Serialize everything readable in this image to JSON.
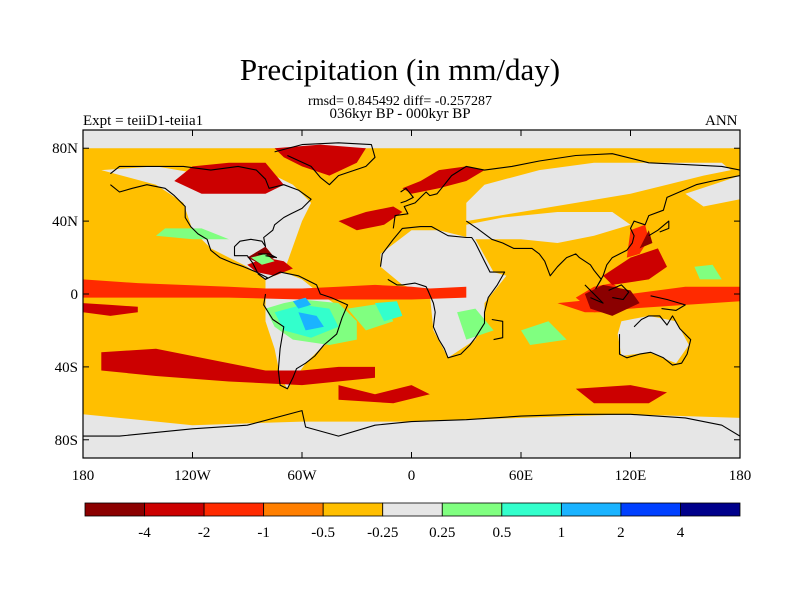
{
  "chart_data": {
    "type": "heatmap",
    "title": "Precipitation (in mm/day)",
    "stats_line": "rmsd= 0.845492 diff= -0.257287",
    "period_line": "036kyr BP - 000kyr BP",
    "left_label": "Expt = teiiD1-teiia1",
    "right_label": "ANN",
    "xlim": [
      -180,
      180
    ],
    "ylim": [
      -90,
      90
    ],
    "x_ticks": [
      {
        "value": -180,
        "label": "180"
      },
      {
        "value": -120,
        "label": "120W"
      },
      {
        "value": -60,
        "label": "60W"
      },
      {
        "value": 0,
        "label": "0"
      },
      {
        "value": 60,
        "label": "60E"
      },
      {
        "value": 120,
        "label": "120E"
      },
      {
        "value": 180,
        "label": "180"
      }
    ],
    "y_ticks": [
      {
        "value": 80,
        "label": "80N"
      },
      {
        "value": 40,
        "label": "40N"
      },
      {
        "value": 0,
        "label": "0"
      },
      {
        "value": -40,
        "label": "40S"
      },
      {
        "value": -80,
        "label": "80S"
      }
    ],
    "colorbar": {
      "boundaries": [
        "-4",
        "-2",
        "-1",
        "-0.5",
        "-0.25",
        "0.25",
        "0.5",
        "1",
        "2",
        "4"
      ],
      "colors": [
        "#8B0000",
        "#CC0000",
        "#FF2A00",
        "#FF7F00",
        "#FFBF00",
        "#E6E6E6",
        "#80FF80",
        "#33FFCC",
        "#1AB3FF",
        "#0040FF",
        "#00008B"
      ]
    },
    "regions": [
      {
        "level": 2,
        "pts": [
          [
            -180,
            8
          ],
          [
            -150,
            6
          ],
          [
            -100,
            4
          ],
          [
            -80,
            3
          ],
          [
            -60,
            3
          ],
          [
            -40,
            4
          ],
          [
            -20,
            5
          ],
          [
            0,
            4
          ],
          [
            10,
            3
          ],
          [
            30,
            4
          ],
          [
            30,
            -2
          ],
          [
            0,
            -3
          ],
          [
            -30,
            -3
          ],
          [
            -60,
            -3
          ],
          [
            -100,
            -2
          ],
          [
            -150,
            -2
          ],
          [
            -180,
            -2
          ]
        ]
      },
      {
        "level": 2,
        "pts": [
          [
            90,
            -2
          ],
          [
            100,
            4
          ],
          [
            110,
            6
          ],
          [
            115,
            2
          ],
          [
            120,
            0
          ],
          [
            135,
            2
          ],
          [
            150,
            4
          ],
          [
            180,
            4
          ],
          [
            180,
            -4
          ],
          [
            150,
            -6
          ],
          [
            120,
            -8
          ],
          [
            100,
            -10
          ]
        ]
      },
      {
        "level": 2,
        "pts": [
          [
            80,
            -5
          ],
          [
            100,
            -3
          ],
          [
            115,
            -6
          ],
          [
            110,
            -10
          ],
          [
            95,
            -10
          ]
        ]
      },
      {
        "level": 2,
        "pts": [
          [
            118,
            20
          ],
          [
            120,
            35
          ],
          [
            128,
            38
          ],
          [
            130,
            30
          ],
          [
            125,
            22
          ]
        ]
      },
      {
        "level": 1,
        "pts": [
          [
            -180,
            -5
          ],
          [
            -165,
            -6
          ],
          [
            -150,
            -7
          ],
          [
            -150,
            -10
          ],
          [
            -165,
            -12
          ],
          [
            -180,
            -10
          ]
        ]
      },
      {
        "level": 1,
        "pts": [
          [
            -90,
            16
          ],
          [
            -80,
            20
          ],
          [
            -70,
            18
          ],
          [
            -65,
            14
          ],
          [
            -75,
            10
          ],
          [
            -85,
            12
          ]
        ]
      },
      {
        "level": 1,
        "pts": [
          [
            -130,
            62
          ],
          [
            -120,
            70
          ],
          [
            -100,
            72
          ],
          [
            -80,
            72
          ],
          [
            -70,
            60
          ],
          [
            -80,
            55
          ],
          [
            -100,
            55
          ],
          [
            -115,
            55
          ]
        ]
      },
      {
        "level": 1,
        "pts": [
          [
            -40,
            40
          ],
          [
            -25,
            45
          ],
          [
            -10,
            48
          ],
          [
            -5,
            45
          ],
          [
            -15,
            38
          ],
          [
            -30,
            35
          ]
        ]
      },
      {
        "level": 1,
        "pts": [
          [
            -75,
            80
          ],
          [
            -50,
            82
          ],
          [
            -25,
            80
          ],
          [
            -30,
            72
          ],
          [
            -45,
            65
          ],
          [
            -60,
            70
          ],
          [
            -70,
            75
          ]
        ]
      },
      {
        "level": 1,
        "pts": [
          [
            -5,
            58
          ],
          [
            5,
            62
          ],
          [
            15,
            68
          ],
          [
            30,
            70
          ],
          [
            40,
            68
          ],
          [
            30,
            62
          ],
          [
            15,
            58
          ],
          [
            0,
            55
          ]
        ]
      },
      {
        "level": 1,
        "pts": [
          [
            -170,
            -32
          ],
          [
            -140,
            -30
          ],
          [
            -100,
            -38
          ],
          [
            -80,
            -42
          ],
          [
            -60,
            -42
          ],
          [
            -40,
            -40
          ],
          [
            -20,
            -40
          ],
          [
            -20,
            -46
          ],
          [
            -60,
            -50
          ],
          [
            -100,
            -48
          ],
          [
            -140,
            -45
          ],
          [
            -170,
            -42
          ]
        ]
      },
      {
        "level": 1,
        "pts": [
          [
            -40,
            -50
          ],
          [
            -20,
            -55
          ],
          [
            0,
            -50
          ],
          [
            10,
            -55
          ],
          [
            -10,
            -60
          ],
          [
            -40,
            -58
          ]
        ]
      },
      {
        "level": 1,
        "pts": [
          [
            90,
            -52
          ],
          [
            120,
            -50
          ],
          [
            140,
            -54
          ],
          [
            130,
            -60
          ],
          [
            100,
            -60
          ]
        ]
      },
      {
        "level": 1,
        "pts": [
          [
            105,
            10
          ],
          [
            120,
            20
          ],
          [
            135,
            25
          ],
          [
            140,
            15
          ],
          [
            130,
            8
          ],
          [
            110,
            5
          ]
        ]
      },
      {
        "level": 0,
        "pts": [
          [
            -90,
            20
          ],
          [
            -80,
            26
          ],
          [
            -75,
            20
          ],
          [
            -82,
            16
          ]
        ]
      },
      {
        "level": 0,
        "pts": [
          [
            95,
            0
          ],
          [
            105,
            5
          ],
          [
            120,
            2
          ],
          [
            125,
            -5
          ],
          [
            110,
            -12
          ],
          [
            98,
            -8
          ]
        ]
      },
      {
        "level": 0,
        "pts": [
          [
            125,
            25
          ],
          [
            130,
            35
          ],
          [
            132,
            28
          ]
        ]
      },
      {
        "level": 6,
        "pts": [
          [
            -140,
            32
          ],
          [
            -120,
            30
          ],
          [
            -100,
            30
          ],
          [
            -115,
            36
          ],
          [
            -135,
            36
          ]
        ]
      },
      {
        "level": 6,
        "pts": [
          [
            -88,
            20
          ],
          [
            -80,
            22
          ],
          [
            -75,
            18
          ],
          [
            -82,
            16
          ]
        ]
      },
      {
        "level": 6,
        "pts": [
          [
            -80,
            -8
          ],
          [
            -70,
            -5
          ],
          [
            -60,
            -3
          ],
          [
            -40,
            -5
          ],
          [
            -30,
            -15
          ],
          [
            -30,
            -25
          ],
          [
            -45,
            -28
          ],
          [
            -65,
            -25
          ],
          [
            -75,
            -18
          ]
        ]
      },
      {
        "level": 6,
        "pts": [
          [
            -35,
            -8
          ],
          [
            -15,
            -5
          ],
          [
            -10,
            -15
          ],
          [
            -25,
            -20
          ]
        ]
      },
      {
        "level": 6,
        "pts": [
          [
            25,
            -10
          ],
          [
            35,
            -8
          ],
          [
            45,
            -20
          ],
          [
            30,
            -25
          ]
        ]
      },
      {
        "level": 6,
        "pts": [
          [
            60,
            -20
          ],
          [
            75,
            -15
          ],
          [
            85,
            -25
          ],
          [
            65,
            -28
          ]
        ]
      },
      {
        "level": 6,
        "pts": [
          [
            155,
            15
          ],
          [
            165,
            16
          ],
          [
            170,
            8
          ],
          [
            158,
            8
          ]
        ]
      },
      {
        "level": 7,
        "pts": [
          [
            -75,
            -10
          ],
          [
            -60,
            -6
          ],
          [
            -45,
            -8
          ],
          [
            -40,
            -18
          ],
          [
            -55,
            -24
          ],
          [
            -70,
            -20
          ]
        ]
      },
      {
        "level": 7,
        "pts": [
          [
            -20,
            -5
          ],
          [
            -8,
            -4
          ],
          [
            -5,
            -12
          ],
          [
            -15,
            -15
          ]
        ]
      },
      {
        "level": 8,
        "pts": [
          [
            -62,
            -10
          ],
          [
            -52,
            -12
          ],
          [
            -48,
            -18
          ],
          [
            -58,
            -20
          ]
        ]
      },
      {
        "level": 8,
        "pts": [
          [
            -65,
            -4
          ],
          [
            -58,
            -2
          ],
          [
            -55,
            -6
          ],
          [
            -62,
            -8
          ]
        ]
      }
    ]
  }
}
